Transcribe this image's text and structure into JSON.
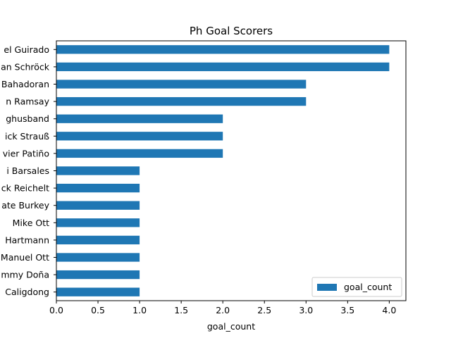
{
  "chart_data": {
    "type": "bar",
    "orientation": "horizontal",
    "title": "Ph Goal Scorers",
    "xlabel": "goal_count",
    "ylabel": "",
    "xlim": [
      0,
      4.2
    ],
    "xticks": [
      "0.0",
      "0.5",
      "1.0",
      "1.5",
      "2.0",
      "2.5",
      "3.0",
      "3.5",
      "4.0"
    ],
    "categories": [
      "el Guirado",
      "an Schröck",
      "Bahadoran",
      "n Ramsay",
      "ghusband",
      "ick Strauß",
      "vier Patiño",
      "i Barsales",
      "ck Reichelt",
      "ate Burkey",
      "Mike Ott",
      "Hartmann",
      "Manuel Ott",
      "mmy Doña",
      "Caligdong"
    ],
    "series": [
      {
        "name": "goal_count",
        "color": "#1f77b4",
        "values": [
          4,
          4,
          3,
          3,
          2,
          2,
          2,
          1,
          1,
          1,
          1,
          1,
          1,
          1,
          1
        ]
      }
    ],
    "legend_position": "lower-right",
    "grid": false
  }
}
